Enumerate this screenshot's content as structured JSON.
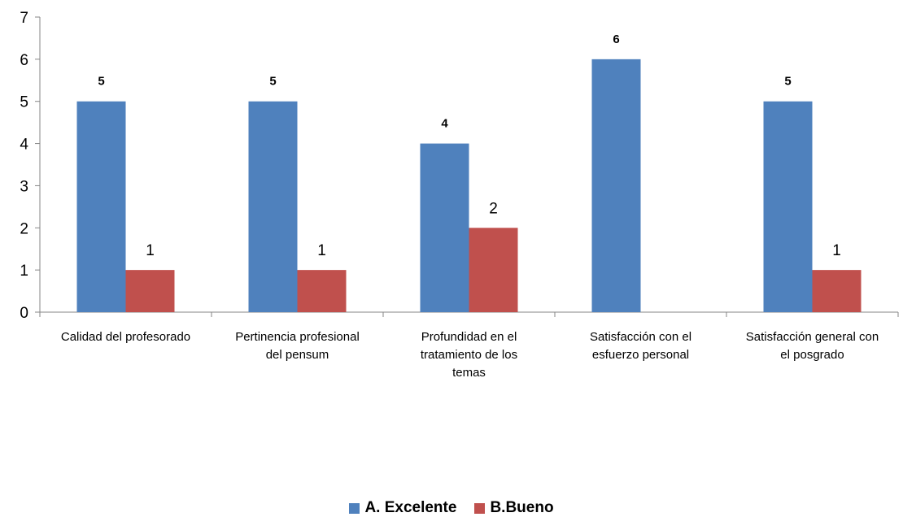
{
  "chart_data": {
    "type": "bar",
    "categories": [
      [
        "Calidad del profesorado"
      ],
      [
        "Pertinencia profesional",
        "del pensum"
      ],
      [
        "Profundidad en el",
        "tratamiento de los",
        "temas"
      ],
      [
        "Satisfacción con el",
        "esfuerzo personal"
      ],
      [
        "Satisfacción general con",
        "el posgrado"
      ]
    ],
    "series": [
      {
        "name": "A. Excelente",
        "color": "#4F81BD",
        "values": [
          5,
          5,
          4,
          6,
          5
        ]
      },
      {
        "name": "B.Bueno",
        "color": "#C0504D",
        "values": [
          1,
          1,
          2,
          null,
          1
        ]
      }
    ],
    "data_labels": {
      "A. Excelente": [
        "5",
        "5",
        "4",
        "6",
        "5"
      ],
      "B.Bueno": [
        "1",
        "1",
        "2",
        "",
        "1"
      ]
    },
    "ylim": [
      0,
      7
    ],
    "yticks": [
      "0",
      "1",
      "2",
      "3",
      "4",
      "5",
      "6",
      "7"
    ],
    "grid": false,
    "legend_position": "bottom"
  }
}
